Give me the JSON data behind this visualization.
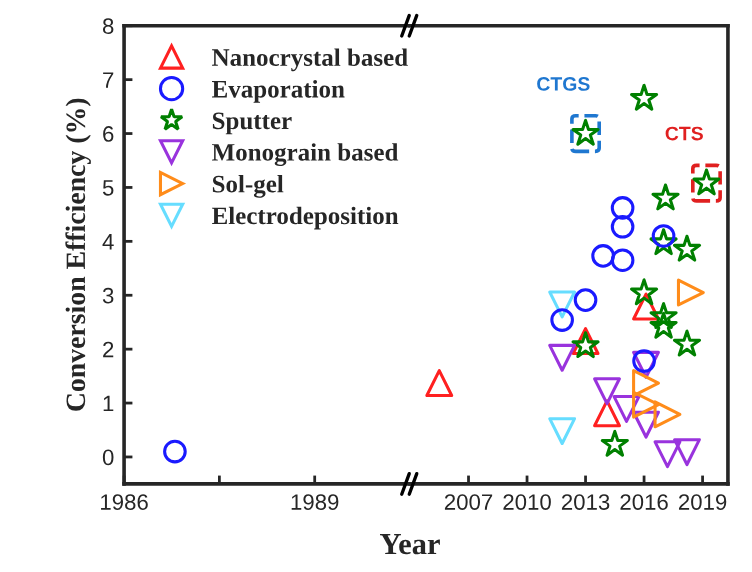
{
  "chart_data": [
    {
      "type": "scatter",
      "xlabel": "Year",
      "ylabel": "Conversion Efficiency (%)",
      "xlim": [
        1986,
        1990.5
      ],
      "xticks": [
        1986,
        {
          "value": 1987.5,
          "label": null
        },
        1989
      ],
      "ylim": [
        -0.5,
        8
      ],
      "yticks": [
        0,
        1,
        2,
        3,
        4,
        5,
        6,
        7,
        8
      ],
      "grid": false,
      "series": [
        {
          "color": "#1a1aff",
          "marker": "circle",
          "x": [
            1986.8
          ],
          "values": [
            0.1
          ]
        }
      ]
    },
    {
      "type": "scatter",
      "xlim": [
        2004,
        2020.3
      ],
      "xticks": [
        2007,
        2010,
        2013,
        2016,
        2019
      ],
      "ylim": [
        -0.5,
        8
      ],
      "tick_labels": "x",
      "grid": false,
      "legend": "top left",
      "series": [
        {
          "name": "Nanocrystal based",
          "color": "#ff2020",
          "marker": "triangle",
          "x": [
            2005.5,
            2013,
            2016.1,
            2014.1
          ],
          "values": [
            1.37,
            2.15,
            2.79,
            0.81
          ]
        },
        {
          "name": "Evaporation",
          "color": "#1a1aff",
          "marker": "circle",
          "x": [
            2014.9,
            2014.9,
            2013.9,
            2014.9,
            2017,
            2013,
            2011.8,
            2016
          ],
          "values": [
            4.62,
            4.27,
            3.73,
            3.65,
            4.1,
            2.91,
            2.54,
            1.78
          ]
        },
        {
          "name": "Sputter",
          "color": "#008000",
          "marker": "star",
          "x": [
            2013,
            2016,
            2019.2,
            2017.1,
            2017,
            2018.2,
            2016,
            2017,
            2017,
            2018.2,
            2013,
            2014.5
          ],
          "values": [
            6.0,
            6.65,
            5.08,
            4.8,
            3.97,
            3.85,
            3.04,
            2.6,
            2.42,
            2.09,
            2.06,
            0.23
          ]
        },
        {
          "name": "Monograin based",
          "color": "#9933dd",
          "marker": "triangle_down",
          "x": [
            2011.8,
            2014.1,
            2015.1,
            2016.1,
            2016.1,
            2017.2,
            2018.2
          ],
          "values": [
            1.84,
            1.22,
            0.89,
            1.71,
            0.6,
            0.05,
            0.09
          ]
        },
        {
          "name": "Sol-gel",
          "color": "#ff8c1a",
          "marker": "triangle_right",
          "x": [
            2018.4,
            2016.1,
            2016.1,
            2017.2
          ],
          "values": [
            3.05,
            1.37,
            0.97,
            0.79
          ]
        },
        {
          "name": "Electrodeposition",
          "color": "#66ddff",
          "marker": "triangle_down",
          "x": [
            2011.8,
            2011.8
          ],
          "values": [
            2.83,
            0.48
          ]
        }
      ],
      "annotations": [
        {
          "text": "CTGS",
          "x": 2013,
          "y": 6.0
        },
        {
          "text": "CTS",
          "x": 2019.2,
          "y": 5.08
        }
      ]
    }
  ]
}
